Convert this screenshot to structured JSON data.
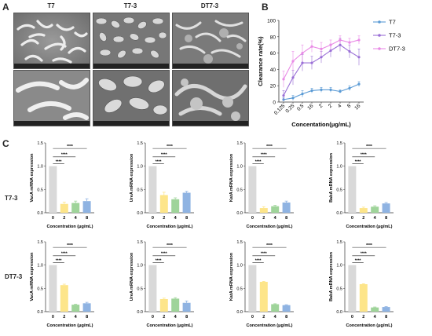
{
  "panel_a": {
    "letter": "A",
    "columns": [
      "T7",
      "T7-3",
      "DT7-3"
    ]
  },
  "panel_b": {
    "letter": "B"
  },
  "panel_c": {
    "letter": "C",
    "rows": [
      "T7-3",
      "DT7-3"
    ]
  },
  "colors": {
    "T7": "#5b9bd5",
    "T7-3": "#9a6fd6",
    "DT7-3": "#e98be6",
    "bar0": "#d9d9d9",
    "bar2": "#fde58a",
    "bar4": "#9fd49a",
    "bar8": "#8fb3e2"
  },
  "chart_data": [
    {
      "type": "line",
      "ylabel": "Clearance rate(%)",
      "xlabel": "Concentation(μg/mL)",
      "categories": [
        "0.125",
        "0.25",
        "0.5",
        "16",
        "2",
        "2",
        "4",
        "8",
        "16"
      ],
      "ylim": [
        0,
        100
      ],
      "yticks": [
        0,
        20,
        40,
        60,
        80,
        100
      ],
      "legend": "top-right",
      "series": [
        {
          "name": "T7",
          "values": [
            3,
            5,
            10,
            14,
            15,
            15,
            13,
            17,
            22
          ],
          "errors": [
            2,
            3,
            4,
            3,
            3,
            3,
            2,
            3,
            3
          ]
        },
        {
          "name": "T7-3",
          "values": [
            8,
            30,
            48,
            48,
            55,
            63,
            70,
            62,
            55
          ],
          "errors": [
            6,
            9,
            10,
            8,
            7,
            8,
            8,
            8,
            10
          ]
        },
        {
          "name": "DT7-3",
          "values": [
            28,
            50,
            60,
            68,
            65,
            70,
            76,
            73,
            76
          ],
          "errors": [
            10,
            12,
            10,
            7,
            8,
            6,
            5,
            5,
            5
          ]
        }
      ]
    },
    {
      "type": "bar",
      "row": "T7-3",
      "ylabel": "VacA mRNA expression",
      "xlabel": "Concentration (μg/mL)",
      "categories": [
        "0",
        "2",
        "4",
        "8"
      ],
      "values": [
        1.0,
        0.19,
        0.21,
        0.25
      ],
      "errors": [
        0,
        0.04,
        0.04,
        0.05
      ],
      "ylim": [
        0,
        1.5
      ],
      "yticks": [
        "0.0",
        "0.5",
        "1.0",
        "1.5"
      ],
      "significance": [
        "****",
        "****",
        "****"
      ]
    },
    {
      "type": "bar",
      "row": "T7-3",
      "ylabel": "UreA mRNA expression",
      "xlabel": "Concentration (μg/mL)",
      "categories": [
        "0",
        "2",
        "4",
        "8"
      ],
      "values": [
        1.0,
        0.38,
        0.29,
        0.43
      ],
      "errors": [
        0,
        0.06,
        0.03,
        0.03
      ],
      "ylim": [
        0,
        1.5
      ],
      "yticks": [
        "0.0",
        "0.5",
        "1.0",
        "1.5"
      ],
      "significance": [
        "****",
        "****",
        "****"
      ]
    },
    {
      "type": "bar",
      "row": "T7-3",
      "ylabel": "KatA mRNA expression",
      "xlabel": "Concentration (μg/mL)",
      "categories": [
        "0",
        "2",
        "4",
        "8"
      ],
      "values": [
        1.0,
        0.1,
        0.14,
        0.22
      ],
      "errors": [
        0,
        0.03,
        0.02,
        0.03
      ],
      "ylim": [
        0,
        1.5
      ],
      "yticks": [
        "0.0",
        "0.5",
        "1.0",
        "1.5"
      ],
      "significance": [
        "****",
        "****",
        "****"
      ]
    },
    {
      "type": "bar",
      "row": "T7-3",
      "ylabel": "BabA mRNA expression",
      "xlabel": "Concentration (μg/mL)",
      "categories": [
        "0",
        "2",
        "4",
        "8"
      ],
      "values": [
        1.0,
        0.1,
        0.13,
        0.2
      ],
      "errors": [
        0,
        0.02,
        0.02,
        0.02
      ],
      "ylim": [
        0,
        1.5
      ],
      "yticks": [
        "0.0",
        "0.5",
        "1.0",
        "1.5"
      ],
      "significance": [
        "****",
        "****",
        "****"
      ]
    },
    {
      "type": "bar",
      "row": "DT7-3",
      "ylabel": "VacA mRNA expression",
      "xlabel": "Concentration (μg/mL)",
      "categories": [
        "0",
        "2",
        "4",
        "8"
      ],
      "values": [
        1.0,
        0.57,
        0.15,
        0.18
      ],
      "errors": [
        0,
        0.02,
        0.01,
        0.02
      ],
      "ylim": [
        0,
        1.5
      ],
      "yticks": [
        "0.0",
        "0.5",
        "1.0",
        "1.5"
      ],
      "significance": [
        "****",
        "****",
        "****"
      ]
    },
    {
      "type": "bar",
      "row": "DT7-3",
      "ylabel": "UreA mRNA expression",
      "xlabel": "Concentration (μg/mL)",
      "categories": [
        "0",
        "2",
        "4",
        "8"
      ],
      "values": [
        1.0,
        0.27,
        0.28,
        0.19
      ],
      "errors": [
        0,
        0.02,
        0.02,
        0.04
      ],
      "ylim": [
        0,
        1.5
      ],
      "yticks": [
        "0.0",
        "0.5",
        "1.0",
        "1.5"
      ],
      "significance": [
        "****",
        "****",
        "****"
      ]
    },
    {
      "type": "bar",
      "row": "DT7-3",
      "ylabel": "KatA mRNA expression",
      "xlabel": "Concentration (μg/mL)",
      "categories": [
        "0",
        "2",
        "4",
        "8"
      ],
      "values": [
        1.0,
        0.64,
        0.16,
        0.14
      ],
      "errors": [
        0,
        0.01,
        0.01,
        0.01
      ],
      "ylim": [
        0,
        1.5
      ],
      "yticks": [
        "0.0",
        "0.5",
        "1.0",
        "1.5"
      ],
      "significance": [
        "****",
        "****",
        "****"
      ]
    },
    {
      "type": "bar",
      "row": "DT7-3",
      "ylabel": "BabA mRNA expression",
      "xlabel": "Concentration (μg/mL)",
      "categories": [
        "0",
        "2",
        "4",
        "8"
      ],
      "values": [
        1.0,
        0.59,
        0.09,
        0.1
      ],
      "errors": [
        0,
        0.01,
        0.01,
        0.01
      ],
      "ylim": [
        0,
        1.5
      ],
      "yticks": [
        "0.0",
        "0.5",
        "1.0",
        "1.5"
      ],
      "significance": [
        "****",
        "****",
        "****"
      ]
    }
  ]
}
